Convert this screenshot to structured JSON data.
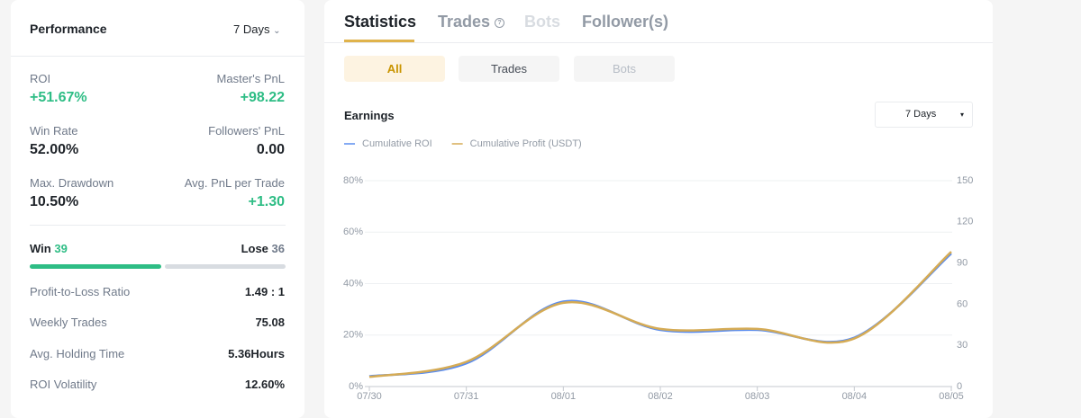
{
  "panel": {
    "title": "Performance",
    "period": "7 Days",
    "metrics": [
      {
        "label": "ROI",
        "value": "+51.67%"
      },
      {
        "label": "Master's PnL",
        "value": "+98.22"
      },
      {
        "label": "Win Rate",
        "value": "52.00%"
      },
      {
        "label": "Followers' PnL",
        "value": "0.00"
      },
      {
        "label": "Max. Drawdown",
        "value": "10.50%"
      },
      {
        "label": "Avg. PnL per Trade",
        "value": "+1.30"
      }
    ],
    "win": {
      "label": "Win",
      "count": 39
    },
    "lose": {
      "label": "Lose",
      "count": 36
    },
    "stats": [
      {
        "label": "Profit-to-Loss Ratio",
        "value": "1.49 : 1"
      },
      {
        "label": "Weekly Trades",
        "value": "75.08"
      },
      {
        "label": "Avg. Holding Time",
        "value": "5.36Hours"
      },
      {
        "label": "ROI Volatility",
        "value": "12.60%"
      }
    ]
  },
  "tabs": [
    "Statistics",
    "Trades",
    "Bots",
    "Follower(s)"
  ],
  "filters": [
    "All",
    "Trades",
    "Bots"
  ],
  "chart_data": {
    "type": "line",
    "title": "Earnings",
    "period": "7 Days",
    "categories": [
      "07/30",
      "07/31",
      "08/01",
      "08/02",
      "08/03",
      "08/04",
      "08/05"
    ],
    "series": [
      {
        "name": "Cumulative ROI",
        "color": "#5b8def",
        "values": [
          4,
          9,
          33,
          22,
          22,
          19,
          51.67
        ]
      },
      {
        "name": "Cumulative Profit (USDT)",
        "color": "#d5ab55",
        "axis": "y2",
        "values": [
          7,
          18,
          61,
          42,
          42,
          35,
          98.22
        ]
      }
    ],
    "ylim": [
      0,
      80
    ],
    "yticks": [
      {
        "value": 0,
        "label": "0%"
      },
      {
        "value": 20,
        "label": "20%"
      },
      {
        "value": 40,
        "label": "40%"
      },
      {
        "value": 60,
        "label": "60%"
      },
      {
        "value": 80,
        "label": "80%"
      }
    ],
    "y2lim": [
      0,
      150
    ],
    "y2ticks": [
      0,
      30,
      60,
      90,
      120,
      150
    ]
  }
}
